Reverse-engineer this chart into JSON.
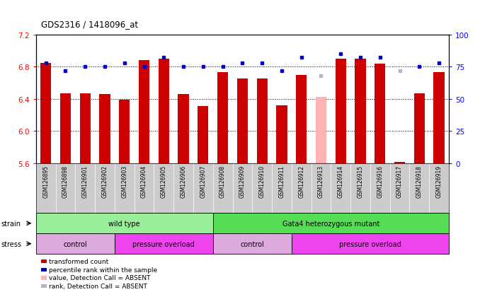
{
  "title": "GDS2316 / 1418096_at",
  "samples": [
    "GSM126895",
    "GSM126898",
    "GSM126901",
    "GSM126902",
    "GSM126903",
    "GSM126904",
    "GSM126905",
    "GSM126906",
    "GSM126907",
    "GSM126908",
    "GSM126909",
    "GSM126910",
    "GSM126911",
    "GSM126912",
    "GSM126913",
    "GSM126914",
    "GSM126915",
    "GSM126916",
    "GSM126917",
    "GSM126918",
    "GSM126919"
  ],
  "bar_values": [
    6.85,
    6.47,
    6.47,
    6.46,
    6.39,
    6.88,
    6.9,
    6.46,
    6.31,
    6.73,
    6.65,
    6.65,
    6.32,
    6.7,
    6.42,
    6.9,
    6.9,
    6.84,
    5.62,
    6.47,
    6.73
  ],
  "bar_absent": [
    false,
    false,
    false,
    false,
    false,
    false,
    false,
    false,
    false,
    false,
    false,
    false,
    false,
    false,
    true,
    false,
    false,
    false,
    false,
    false,
    false
  ],
  "dot_values": [
    78,
    72,
    75,
    75,
    78,
    75,
    82,
    75,
    75,
    75,
    78,
    78,
    72,
    82,
    68,
    85,
    82,
    82,
    72,
    75,
    78
  ],
  "dot_absent": [
    false,
    false,
    false,
    false,
    false,
    false,
    false,
    false,
    false,
    false,
    false,
    false,
    false,
    false,
    true,
    false,
    false,
    false,
    true,
    false,
    false
  ],
  "ylim_left": [
    5.6,
    7.2
  ],
  "ylim_right": [
    0,
    100
  ],
  "yticks_left": [
    5.6,
    6.0,
    6.4,
    6.8,
    7.2
  ],
  "yticks_right": [
    0,
    25,
    50,
    75,
    100
  ],
  "bar_color_normal": "#cc0000",
  "bar_color_absent": "#ffb3b3",
  "dot_color_normal": "#0000cc",
  "dot_color_absent": "#b3b3cc",
  "strain_blocks": [
    {
      "text": "wild type",
      "start": 0,
      "end": 9,
      "color": "#99ee99"
    },
    {
      "text": "Gata4 heterozygous mutant",
      "start": 9,
      "end": 21,
      "color": "#55dd55"
    }
  ],
  "stress_blocks": [
    {
      "text": "control",
      "start": 0,
      "end": 4,
      "color": "#ddaadd"
    },
    {
      "text": "pressure overload",
      "start": 4,
      "end": 9,
      "color": "#ee44ee"
    },
    {
      "text": "control",
      "start": 9,
      "end": 13,
      "color": "#ddaadd"
    },
    {
      "text": "pressure overload",
      "start": 13,
      "end": 21,
      "color": "#ee44ee"
    }
  ],
  "legend_items": [
    {
      "label": "transformed count",
      "color": "#cc0000"
    },
    {
      "label": "percentile rank within the sample",
      "color": "#0000cc"
    },
    {
      "label": "value, Detection Call = ABSENT",
      "color": "#ffb3b3"
    },
    {
      "label": "rank, Detection Call = ABSENT",
      "color": "#b3b3cc"
    }
  ],
  "xtick_bg": "#cccccc",
  "fig_bg": "#ffffff"
}
